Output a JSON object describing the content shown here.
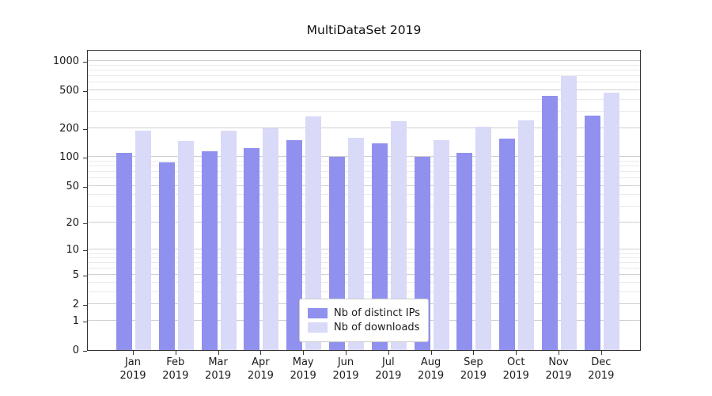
{
  "chart_data": {
    "type": "bar",
    "title": "MultiDataSet 2019",
    "categories": [
      "Jan",
      "Feb",
      "Mar",
      "Apr",
      "May",
      "Jun",
      "Jul",
      "Aug",
      "Sep",
      "Oct",
      "Nov",
      "Dec"
    ],
    "x_sublabel": "2019",
    "series": [
      {
        "name": "Nb of distinct IPs",
        "color": "#9090ee",
        "values": [
          112,
          88,
          115,
          125,
          150,
          100,
          140,
          100,
          112,
          158,
          435,
          270
        ]
      },
      {
        "name": "Nb of downloads",
        "color": "#d9d9f8",
        "values": [
          190,
          148,
          190,
          200,
          265,
          160,
          240,
          150,
          210,
          245,
          700,
          470
        ]
      }
    ],
    "yscale": "log1p",
    "yticks": [
      0,
      1,
      2,
      5,
      10,
      20,
      50,
      100,
      200,
      500,
      1000
    ],
    "yticks_minor": [
      3,
      4,
      6,
      7,
      8,
      9,
      30,
      40,
      60,
      70,
      80,
      90,
      300,
      400,
      600,
      700,
      800,
      900
    ],
    "ylim": [
      0,
      1330
    ],
    "grid": true,
    "legend_position": "lower center"
  },
  "colors": {
    "background": "#ffffff",
    "axis": "#333333",
    "grid_major": "#cfcfcf",
    "grid_minor": "#eaeaea",
    "text": "#1a1a1a",
    "legend_border": "#cccccc"
  }
}
